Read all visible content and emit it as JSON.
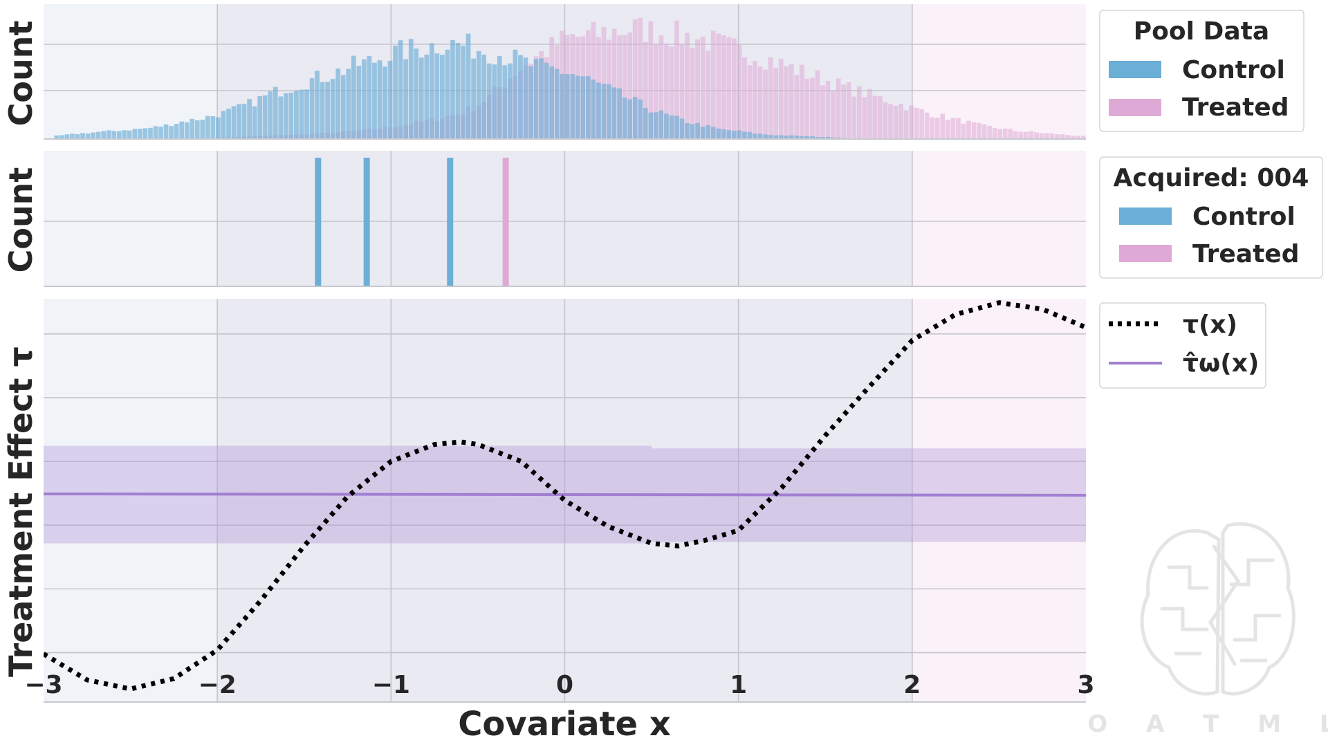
{
  "chart_data": [
    {
      "type": "bar",
      "panel": "pool",
      "ylabel": "Count",
      "xlim": [
        -3,
        3
      ],
      "legend": {
        "title": "Pool Data",
        "position": "right",
        "entries": [
          "Control",
          "Treated"
        ]
      },
      "colors": {
        "control": "#6baed6",
        "treated": "#dfa9d6"
      },
      "bin_width": 0.03,
      "series": [
        {
          "name": "Control",
          "points": [
            [
              -2.95,
              0.02
            ],
            [
              -2.8,
              0.04
            ],
            [
              -2.7,
              0.05
            ],
            [
              -2.6,
              0.06
            ],
            [
              -2.5,
              0.07
            ],
            [
              -2.4,
              0.08
            ],
            [
              -2.3,
              0.1
            ],
            [
              -2.2,
              0.13
            ],
            [
              -2.1,
              0.15
            ],
            [
              -2.0,
              0.18
            ],
            [
              -1.9,
              0.22
            ],
            [
              -1.8,
              0.27
            ],
            [
              -1.7,
              0.33
            ],
            [
              -1.6,
              0.38
            ],
            [
              -1.5,
              0.42
            ],
            [
              -1.4,
              0.46
            ],
            [
              -1.3,
              0.5
            ],
            [
              -1.2,
              0.55
            ],
            [
              -1.1,
              0.58
            ],
            [
              -1.0,
              0.63
            ],
            [
              -0.9,
              0.66
            ],
            [
              -0.8,
              0.68
            ],
            [
              -0.7,
              0.71
            ],
            [
              -0.6,
              0.7
            ],
            [
              -0.5,
              0.67
            ],
            [
              -0.4,
              0.64
            ],
            [
              -0.3,
              0.6
            ],
            [
              -0.2,
              0.55
            ],
            [
              -0.1,
              0.52
            ],
            [
              0.0,
              0.5
            ],
            [
              0.1,
              0.46
            ],
            [
              0.2,
              0.4
            ],
            [
              0.3,
              0.34
            ],
            [
              0.4,
              0.28
            ],
            [
              0.5,
              0.22
            ],
            [
              0.6,
              0.17
            ],
            [
              0.7,
              0.13
            ],
            [
              0.8,
              0.1
            ],
            [
              0.9,
              0.07
            ],
            [
              1.0,
              0.06
            ],
            [
              1.1,
              0.04
            ],
            [
              1.2,
              0.03
            ],
            [
              1.4,
              0.02
            ],
            [
              1.6,
              0.01
            ]
          ]
        },
        {
          "name": "Treated",
          "points": [
            [
              -2.0,
              0.01
            ],
            [
              -1.8,
              0.02
            ],
            [
              -1.6,
              0.03
            ],
            [
              -1.4,
              0.04
            ],
            [
              -1.2,
              0.06
            ],
            [
              -1.0,
              0.09
            ],
            [
              -0.8,
              0.13
            ],
            [
              -0.6,
              0.19
            ],
            [
              -0.5,
              0.25
            ],
            [
              -0.4,
              0.35
            ],
            [
              -0.3,
              0.48
            ],
            [
              -0.2,
              0.58
            ],
            [
              -0.1,
              0.66
            ],
            [
              0.0,
              0.74
            ],
            [
              0.1,
              0.76
            ],
            [
              0.2,
              0.78
            ],
            [
              0.3,
              0.8
            ],
            [
              0.4,
              0.82
            ],
            [
              0.5,
              0.8
            ],
            [
              0.6,
              0.78
            ],
            [
              0.7,
              0.76
            ],
            [
              0.8,
              0.74
            ],
            [
              0.9,
              0.7
            ],
            [
              1.0,
              0.66
            ],
            [
              1.1,
              0.62
            ],
            [
              1.2,
              0.58
            ],
            [
              1.3,
              0.53
            ],
            [
              1.4,
              0.48
            ],
            [
              1.5,
              0.44
            ],
            [
              1.6,
              0.39
            ],
            [
              1.7,
              0.35
            ],
            [
              1.8,
              0.31
            ],
            [
              1.9,
              0.27
            ],
            [
              2.0,
              0.23
            ],
            [
              2.1,
              0.19
            ],
            [
              2.2,
              0.16
            ],
            [
              2.3,
              0.13
            ],
            [
              2.4,
              0.1
            ],
            [
              2.5,
              0.08
            ],
            [
              2.6,
              0.06
            ],
            [
              2.7,
              0.05
            ],
            [
              2.8,
              0.04
            ],
            [
              2.9,
              0.03
            ],
            [
              3.0,
              0.02
            ]
          ]
        }
      ]
    },
    {
      "type": "bar",
      "panel": "acquired",
      "ylabel": "Count",
      "xlim": [
        -3,
        3
      ],
      "legend": {
        "title": "Acquired: 004",
        "position": "right",
        "entries": [
          "Control",
          "Treated"
        ]
      },
      "bars": [
        {
          "x": -1.42,
          "series": "Control",
          "count": 1
        },
        {
          "x": -1.14,
          "series": "Control",
          "count": 1
        },
        {
          "x": -0.66,
          "series": "Control",
          "count": 1
        },
        {
          "x": -0.34,
          "series": "Treated",
          "count": 1
        }
      ]
    },
    {
      "type": "line",
      "panel": "effect",
      "xlabel": "Covariate x",
      "ylabel": "Treatment Effect τ",
      "xlim": [
        -3,
        3
      ],
      "ylim": [
        -1.6,
        1.5
      ],
      "xticks": [
        "−3",
        "−2",
        "−1",
        "0",
        "1",
        "2",
        "3"
      ],
      "legend": {
        "position": "right",
        "entries": [
          "τ(x)",
          "τ̂ω(x)"
        ]
      },
      "series": [
        {
          "name": "τ(x)",
          "style": "dotted",
          "color": "#000000",
          "points": [
            [
              -3.0,
              -1.23
            ],
            [
              -2.75,
              -1.43
            ],
            [
              -2.5,
              -1.5
            ],
            [
              -2.25,
              -1.42
            ],
            [
              -2.0,
              -1.2
            ],
            [
              -1.75,
              -0.82
            ],
            [
              -1.5,
              -0.4
            ],
            [
              -1.25,
              -0.02
            ],
            [
              -1.0,
              0.25
            ],
            [
              -0.75,
              0.38
            ],
            [
              -0.6,
              0.4
            ],
            [
              -0.5,
              0.38
            ],
            [
              -0.25,
              0.25
            ],
            [
              0.0,
              -0.05
            ],
            [
              0.25,
              -0.25
            ],
            [
              0.5,
              -0.38
            ],
            [
              0.65,
              -0.4
            ],
            [
              0.8,
              -0.36
            ],
            [
              1.0,
              -0.28
            ],
            [
              1.25,
              0.05
            ],
            [
              1.5,
              0.45
            ],
            [
              1.75,
              0.82
            ],
            [
              2.0,
              1.18
            ],
            [
              2.25,
              1.38
            ],
            [
              2.5,
              1.47
            ],
            [
              2.75,
              1.42
            ],
            [
              3.0,
              1.28
            ]
          ]
        },
        {
          "name": "τ̂ω(x)",
          "style": "solid",
          "color": "#a17fd1",
          "points": [
            [
              -3.0,
              0.0
            ],
            [
              3.0,
              -0.01
            ]
          ],
          "band": {
            "lower": -0.38,
            "upper": 0.37
          }
        }
      ]
    }
  ],
  "watermark": {
    "text": "O A T M L",
    "icon": "brain-circuit-icon"
  }
}
